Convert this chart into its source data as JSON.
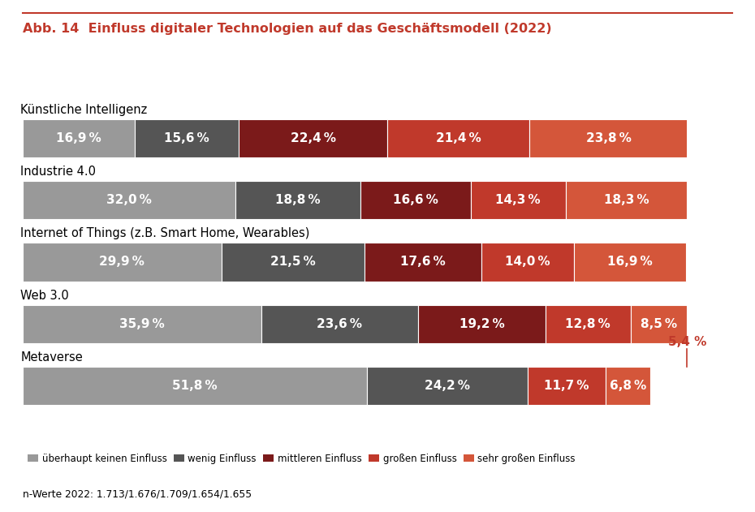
{
  "title": "Abb. 14  Einfluss digitaler Technologien auf das Geschäftsmodell (2022)",
  "categories": [
    "Künstliche Intelligenz",
    "Industrie 4.0",
    "Internet of Things (z.B. Smart Home, Wearables)",
    "Web 3.0",
    "Metaverse"
  ],
  "data": [
    [
      16.9,
      15.6,
      22.4,
      21.4,
      23.8
    ],
    [
      32.0,
      18.8,
      16.6,
      14.3,
      18.3
    ],
    [
      29.9,
      21.5,
      17.6,
      14.0,
      16.9
    ],
    [
      35.9,
      23.6,
      19.2,
      12.8,
      8.5
    ],
    [
      51.8,
      24.2,
      0.0,
      11.7,
      6.8
    ]
  ],
  "metaverse_missing_label": "5,4 %",
  "metaverse_missing_value": 5.4,
  "colors": [
    "#999999",
    "#555555",
    "#7b1a1a",
    "#c0392b",
    "#d4563a"
  ],
  "legend_labels": [
    "überhaupt keinen Einfluss",
    "wenig Einfluss",
    "mittleren Einfluss",
    "großen Einfluss",
    "sehr großen Einfluss"
  ],
  "footnote": "n-Werte 2022: 1.713/1.676/1.709/1.654/1.655",
  "title_color": "#c0392b",
  "bar_height": 0.62,
  "background_color": "#ffffff",
  "label_fontsize": 11,
  "category_fontsize": 10.5,
  "title_fontsize": 11.5
}
